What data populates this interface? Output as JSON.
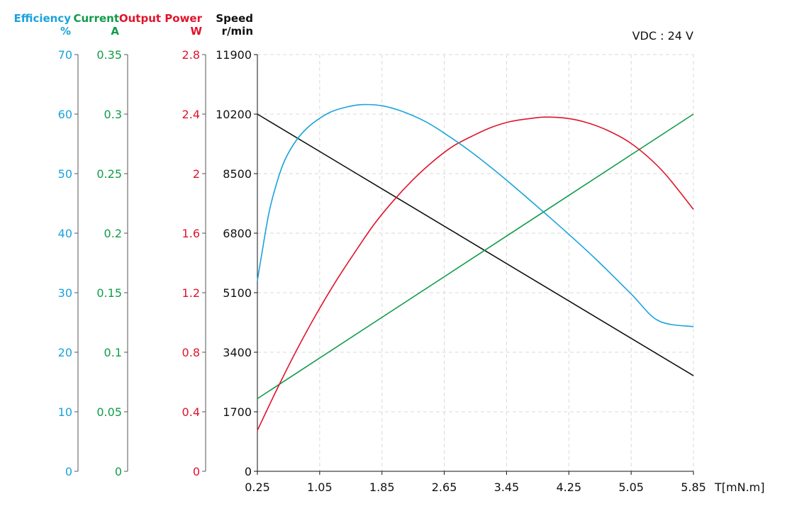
{
  "chart_data": {
    "type": "line",
    "annotation": "VDC : 24 V",
    "x_axis": {
      "label": "T[mN.m]",
      "range": [
        0.25,
        5.85
      ],
      "ticks": [
        "0.25",
        "1.05",
        "1.85",
        "2.65",
        "3.45",
        "4.25",
        "5.05",
        "5.85"
      ]
    },
    "y_axes": [
      {
        "key": "efficiency",
        "title": "Efficiency",
        "unit": "%",
        "color": "#1aa3dc",
        "range": [
          0,
          70
        ],
        "ticks": [
          "0",
          "10",
          "20",
          "30",
          "40",
          "50",
          "60",
          "70"
        ]
      },
      {
        "key": "current",
        "title": "Current",
        "unit": "A",
        "color": "#129c4a",
        "range": [
          0,
          0.35
        ],
        "ticks": [
          "0",
          "0.05",
          "0.1",
          "0.15",
          "0.2",
          "0.25",
          "0.3",
          "0.35"
        ]
      },
      {
        "key": "output_power",
        "title": "Output Power",
        "unit": "W",
        "color": "#e0142c",
        "range": [
          0,
          2.8
        ],
        "ticks": [
          "0",
          "0.4",
          "0.8",
          "1.2",
          "1.6",
          "2",
          "2.4",
          "2.8"
        ]
      },
      {
        "key": "speed",
        "title": "Speed",
        "unit": "r/min",
        "color": "#111111",
        "range": [
          0,
          11900
        ],
        "ticks": [
          "0",
          "1700",
          "3400",
          "5100",
          "6800",
          "8500",
          "10200",
          "11900"
        ]
      }
    ],
    "grid": true,
    "series": [
      {
        "axis": "speed",
        "color": "#111111",
        "x": [
          0.25,
          5.85
        ],
        "y": [
          10200,
          2730
        ]
      },
      {
        "axis": "current",
        "color": "#129c4a",
        "x": [
          0.25,
          5.85
        ],
        "y": [
          0.061,
          0.3
        ]
      },
      {
        "axis": "output_power",
        "color": "#e0142c",
        "x": [
          0.25,
          0.5,
          0.75,
          1.0,
          1.25,
          1.5,
          1.75,
          2.0,
          2.25,
          2.5,
          2.75,
          3.0,
          3.25,
          3.5,
          3.75,
          3.95,
          4.25,
          4.5,
          4.75,
          5.0,
          5.25,
          5.5,
          5.85
        ],
        "y": [
          0.275,
          0.55,
          0.81,
          1.05,
          1.27,
          1.47,
          1.66,
          1.82,
          1.96,
          2.08,
          2.18,
          2.25,
          2.31,
          2.35,
          2.37,
          2.38,
          2.37,
          2.34,
          2.29,
          2.22,
          2.12,
          1.99,
          1.76
        ]
      },
      {
        "axis": "efficiency",
        "color": "#1aa3dc",
        "x": [
          0.25,
          0.3,
          0.4,
          0.5,
          0.6,
          0.75,
          0.9,
          1.05,
          1.2,
          1.4,
          1.6,
          1.85,
          2.1,
          2.4,
          2.65,
          3.0,
          3.45,
          4.0,
          4.25,
          4.6,
          5.05,
          5.4,
          5.85
        ],
        "y": [
          32,
          36,
          43.5,
          48.5,
          52.2,
          55.6,
          57.8,
          59.3,
          60.4,
          61.2,
          61.6,
          61.4,
          60.5,
          58.8,
          56.8,
          53.6,
          48.9,
          42.7,
          39.8,
          35.6,
          29.8,
          25.3,
          24.3
        ]
      }
    ]
  }
}
